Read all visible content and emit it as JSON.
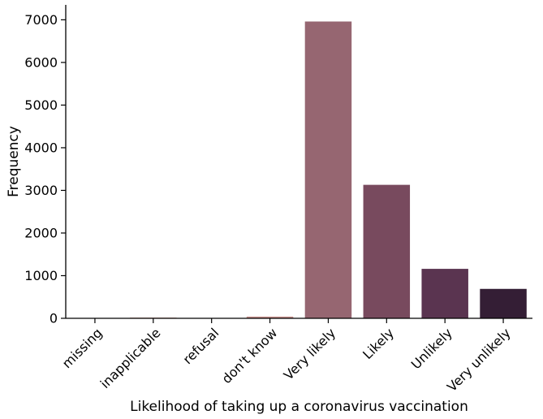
{
  "chart_data": {
    "type": "bar",
    "title": "",
    "xlabel": "Likelihood of taking up a coronavirus vaccination",
    "ylabel": "Frequency",
    "categories": [
      "missing",
      "inapplicable",
      "refusal",
      "don't know",
      "Very likely",
      "Likely",
      "Unlikely",
      "Very unlikely"
    ],
    "values": [
      5,
      20,
      5,
      40,
      6960,
      3130,
      1160,
      690
    ],
    "ylim": [
      0,
      7350
    ],
    "yticks": [
      0,
      1000,
      2000,
      3000,
      4000,
      5000,
      6000,
      7000
    ],
    "ytick_labels": [
      "0",
      "1000",
      "2000",
      "3000",
      "4000",
      "5000",
      "6000",
      "7000"
    ],
    "colors": [
      "#ecd7c9",
      "#e4c2b5",
      "#d9a9a1",
      "#c78e8b",
      "#966671",
      "#784a5e",
      "#5a3450",
      "#341e35"
    ],
    "grid": false,
    "legend": "none"
  }
}
